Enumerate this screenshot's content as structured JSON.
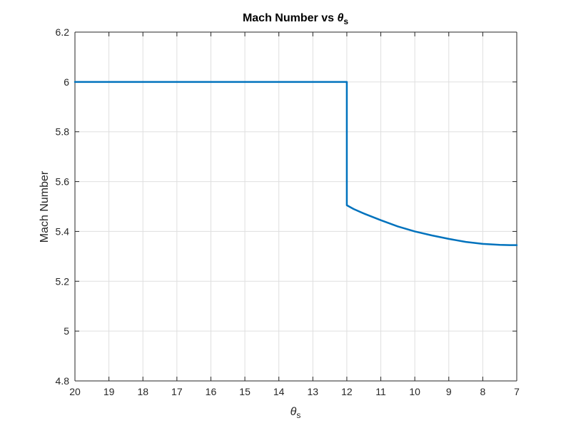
{
  "chart_data": {
    "type": "line",
    "title_main": "Mach Number vs ",
    "title_symbol": "θ",
    "title_sub": "s",
    "xlabel_symbol": "θ",
    "xlabel_sub": "s",
    "ylabel": "Mach Number",
    "xlim": [
      20,
      7
    ],
    "x_reversed": true,
    "ylim": [
      4.8,
      6.2
    ],
    "x_ticks": [
      20,
      19,
      18,
      17,
      16,
      15,
      14,
      13,
      12,
      11,
      10,
      9,
      8,
      7
    ],
    "x_tick_labels": [
      "20",
      "19",
      "18",
      "17",
      "16",
      "15",
      "14",
      "13",
      "12",
      "11",
      "10",
      "9",
      "8",
      "7"
    ],
    "y_ticks": [
      4.8,
      5,
      5.2,
      5.4,
      5.6,
      5.8,
      6,
      6.2
    ],
    "y_tick_labels": [
      "4.8",
      "5",
      "5.2",
      "5.4",
      "5.6",
      "5.8",
      "6",
      "6.2"
    ],
    "grid": true,
    "line_color": "#0072BD",
    "series": [
      {
        "x": [
          20,
          19,
          18,
          17,
          16,
          15,
          14,
          13,
          12.0,
          12.0,
          11.8,
          11.5,
          11.0,
          10.5,
          10.0,
          9.5,
          9.0,
          8.5,
          8.0,
          7.5,
          7.2,
          7.0
        ],
        "y": [
          6,
          6,
          6,
          6,
          6,
          6,
          6,
          6,
          6,
          5.505,
          5.49,
          5.472,
          5.445,
          5.42,
          5.4,
          5.384,
          5.37,
          5.358,
          5.35,
          5.346,
          5.345,
          5.345
        ]
      }
    ]
  }
}
